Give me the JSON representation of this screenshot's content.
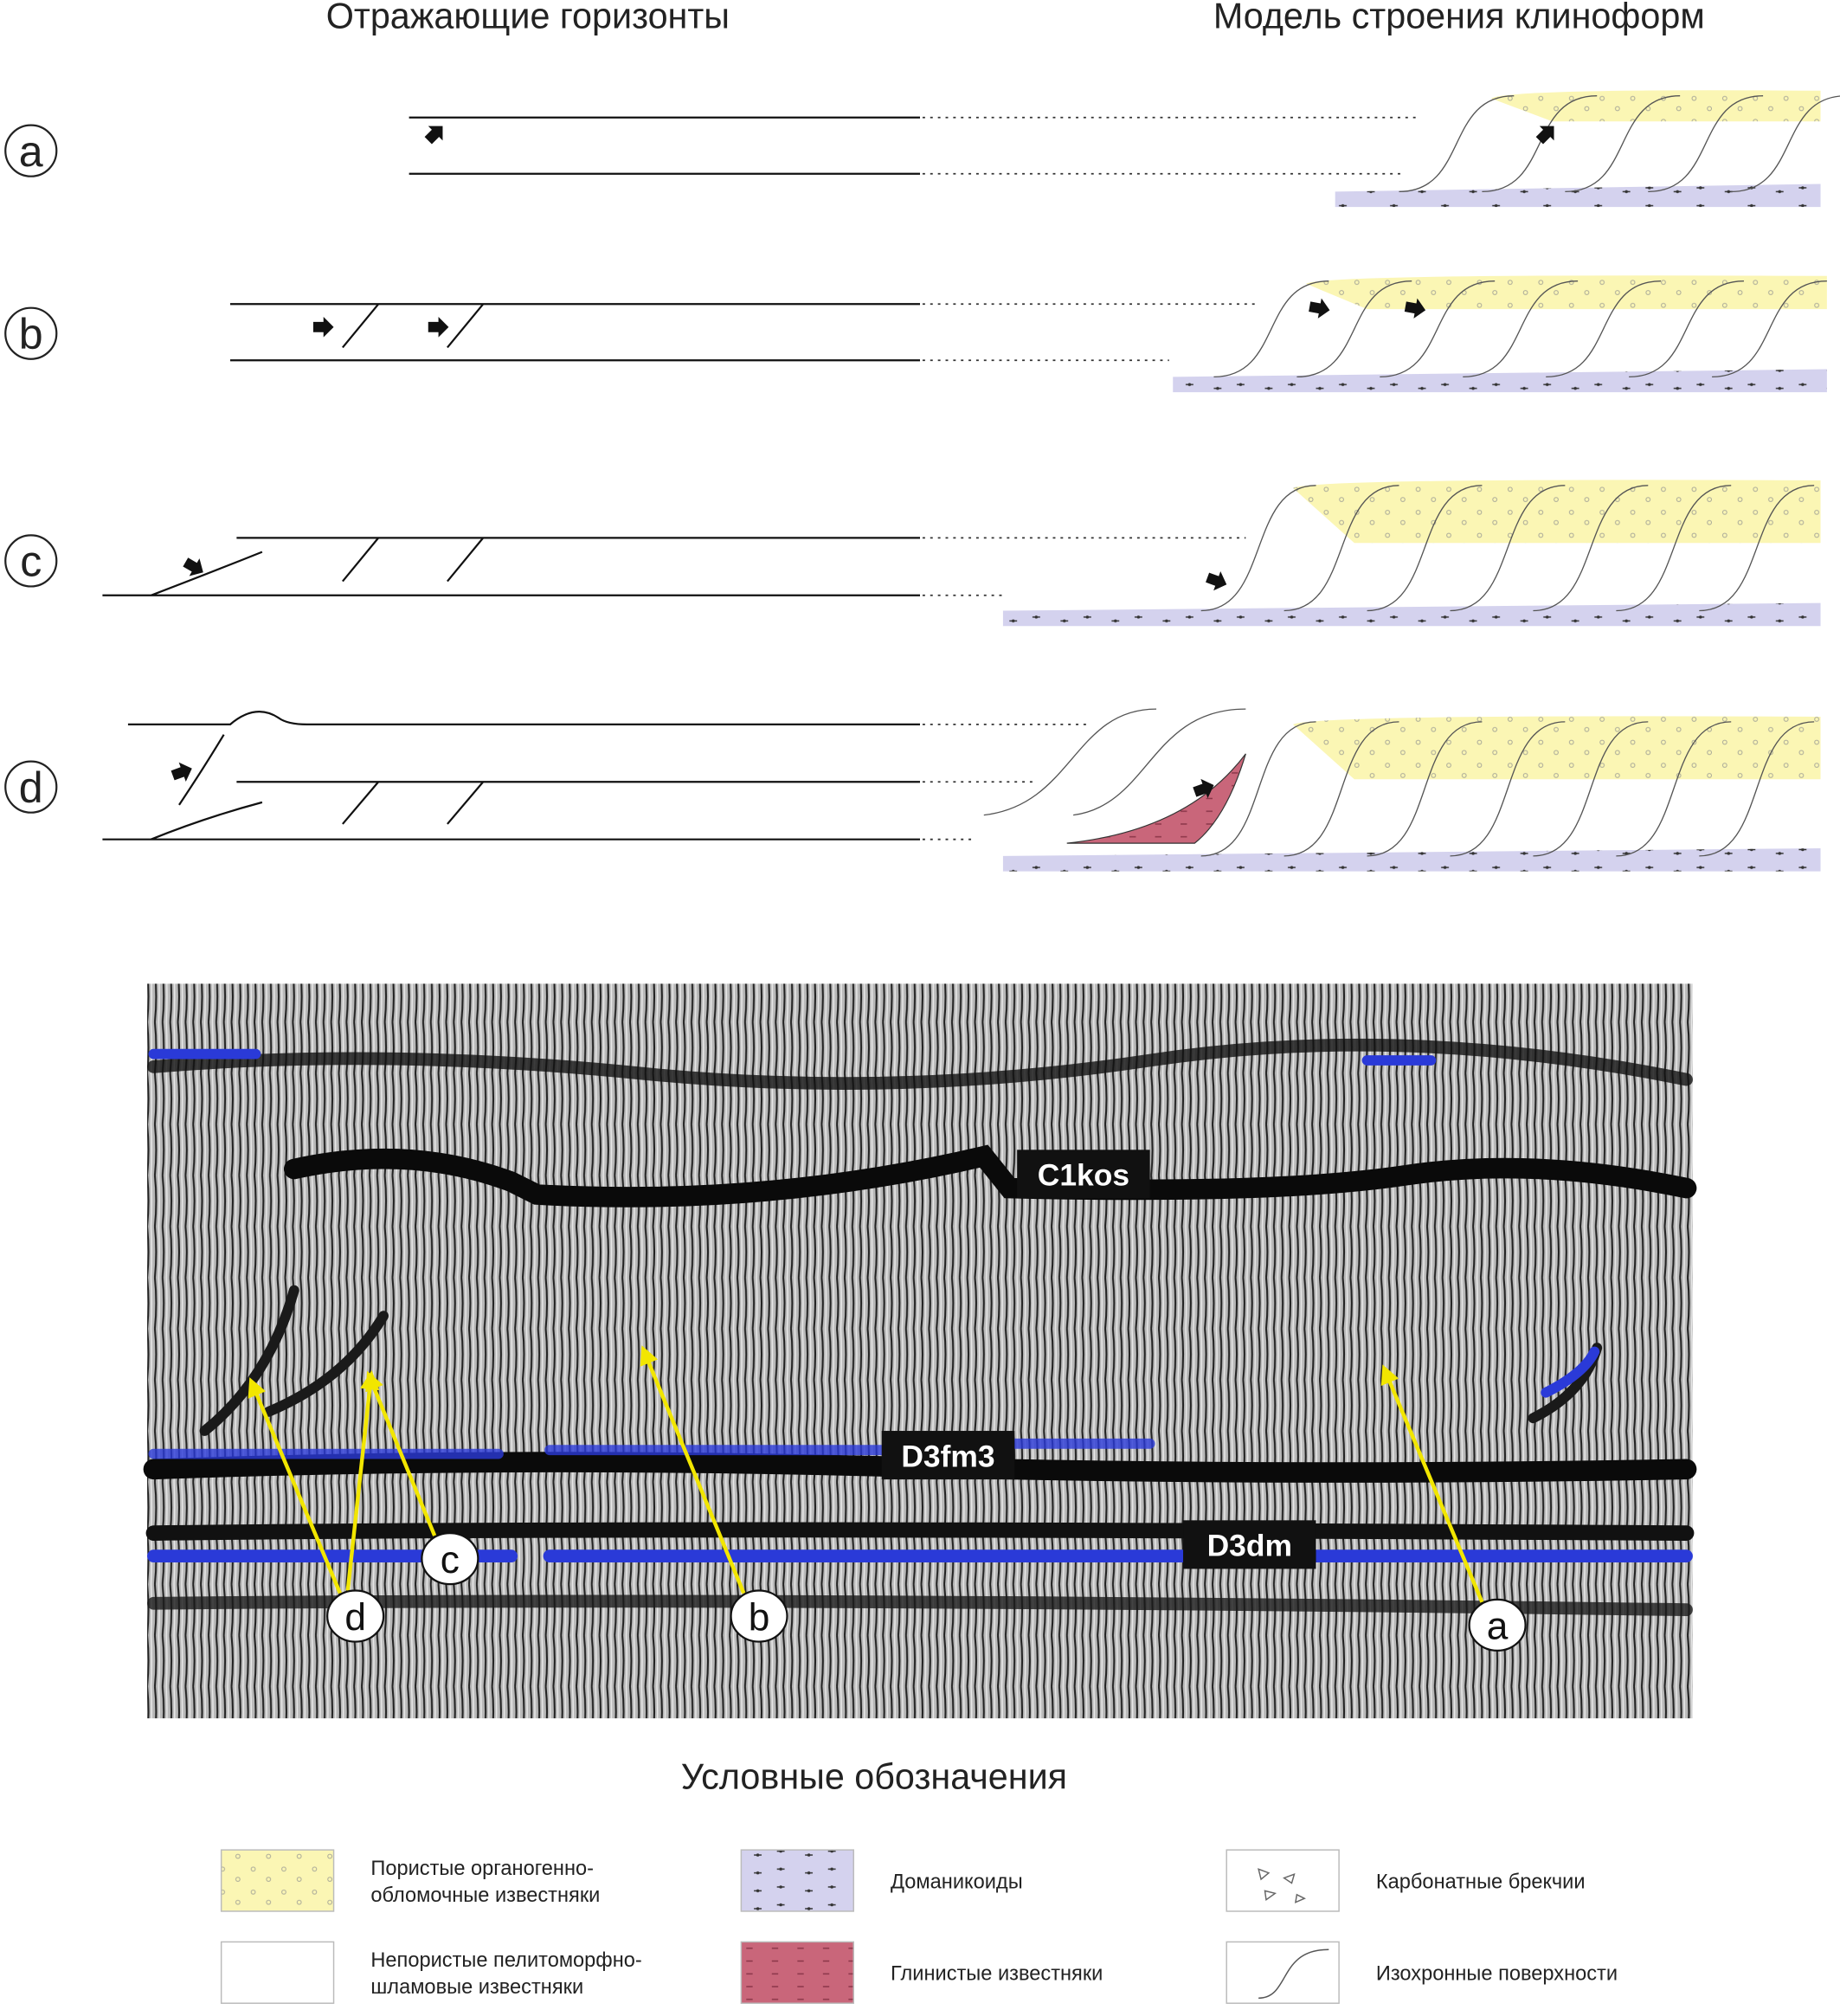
{
  "header": {
    "left_title": "Отражающие горизонты",
    "right_title": "Модель строения клиноформ"
  },
  "row_labels": [
    "a",
    "b",
    "c",
    "d"
  ],
  "seismic": {
    "horizons": [
      "C1kos",
      "D3fm3",
      "D3dm"
    ],
    "markers": [
      "d",
      "c",
      "b",
      "a"
    ]
  },
  "legend": {
    "title": "Условные обозначения",
    "items": [
      {
        "lines": [
          "Пористые органогенно-",
          "обломочные известняки"
        ]
      },
      {
        "lines": [
          "Доманикоиды"
        ]
      },
      {
        "lines": [
          "Карбонатные брекчии"
        ]
      },
      {
        "lines": [
          "Непористые пелитоморфно-",
          "шламовые известняки"
        ]
      },
      {
        "lines": [
          "Глинистые известняки"
        ]
      },
      {
        "lines": [
          "Изохронные поверхности"
        ]
      }
    ]
  }
}
